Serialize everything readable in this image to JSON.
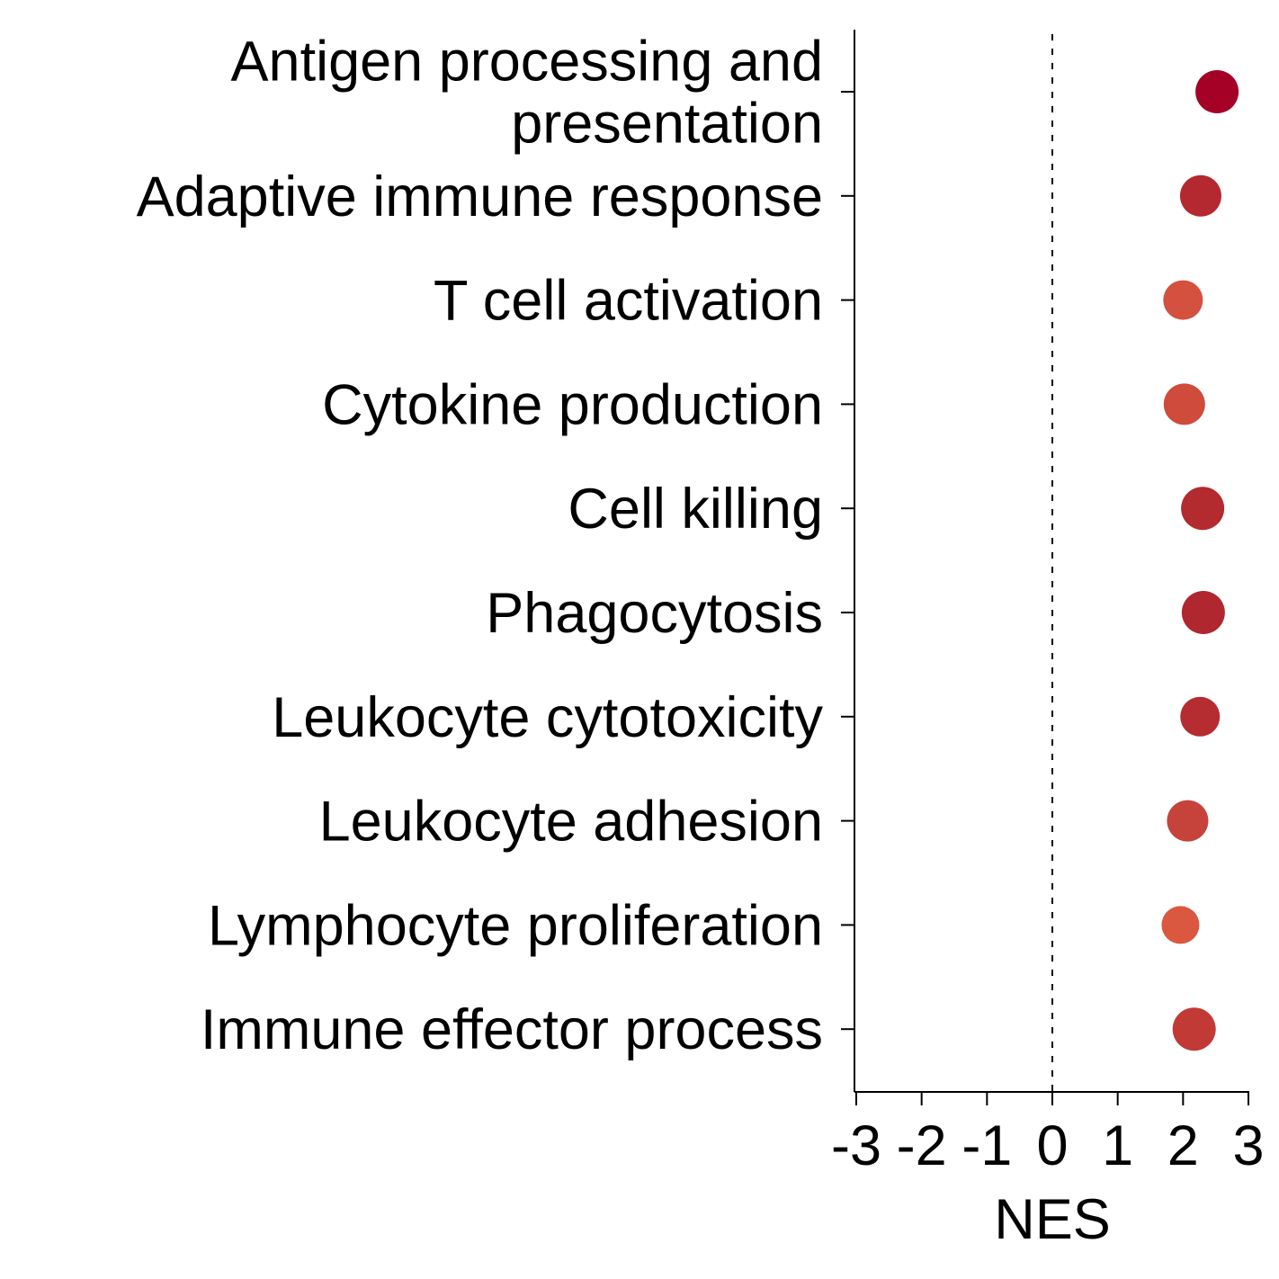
{
  "chart_data": {
    "type": "scatter",
    "orientation": "horizontal",
    "categories": [
      [
        "Antigen processing and",
        "presentation"
      ],
      [
        "Adaptive immune response"
      ],
      [
        "T cell activation"
      ],
      [
        "Cytokine production"
      ],
      [
        "Cell killing"
      ],
      [
        "Phagocytosis"
      ],
      [
        "Leukocyte cytotoxicity"
      ],
      [
        "Leukocyte adhesion"
      ],
      [
        "Lymphocyte proliferation"
      ],
      [
        "Immune effector process"
      ]
    ],
    "values": [
      2.52,
      2.27,
      2.0,
      2.02,
      2.3,
      2.31,
      2.26,
      2.07,
      1.96,
      2.17
    ],
    "sizes": [
      2.4,
      2.3,
      2.2,
      2.3,
      2.4,
      2.4,
      2.2,
      2.3,
      2.1,
      2.4
    ],
    "colors": [
      "#a50026",
      "#b3292f",
      "#d4503f",
      "#cf4b3c",
      "#b32a2f",
      "#b12730",
      "#b52c31",
      "#c6433b",
      "#d9583f",
      "#c13a36"
    ],
    "xlabel": "NES",
    "xlim": [
      -3,
      3
    ],
    "xticks": [
      -3,
      -2,
      -1,
      0,
      1,
      2,
      3
    ],
    "xtick_labels": [
      "-3",
      "-2",
      "-1",
      "0",
      "1",
      "2",
      "3"
    ],
    "reference_line": 0,
    "grid": false,
    "legend": "none"
  }
}
